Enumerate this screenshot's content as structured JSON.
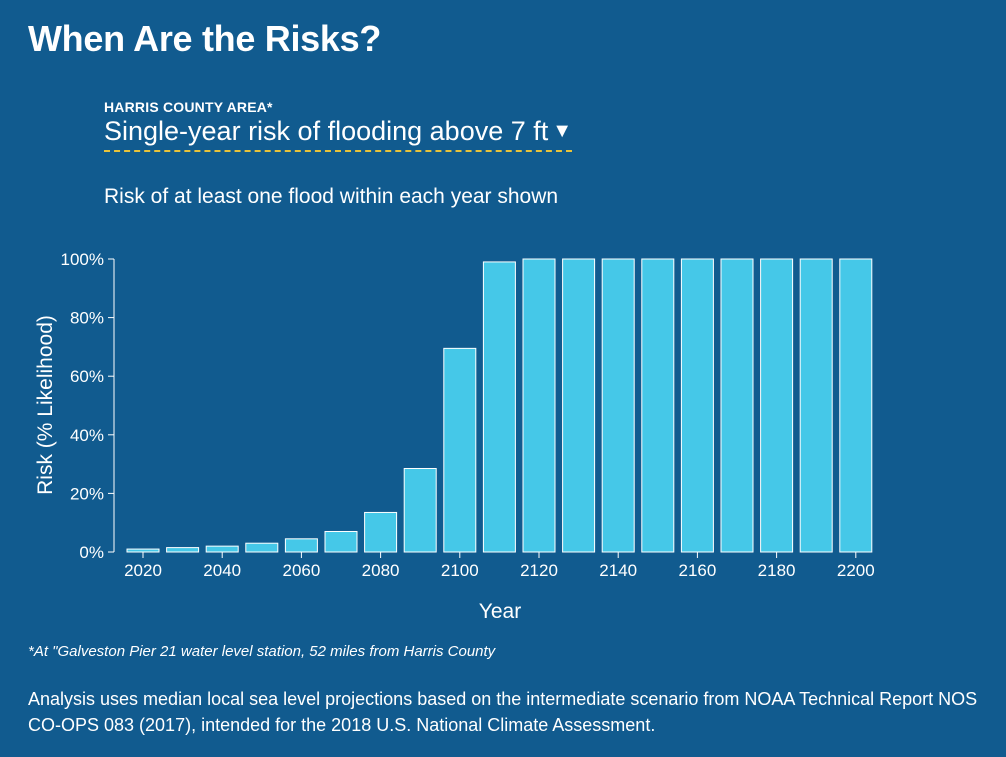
{
  "header": {
    "title": "When Are the Risks?",
    "area_label": "HARRIS COUNTY AREA*",
    "selector_label": "Single-year risk of flooding above 7 ft",
    "selector_caret": "▼",
    "subtitle": "Risk of at least one flood within each year shown"
  },
  "chart_data": {
    "type": "bar",
    "title": "",
    "xlabel": "Year",
    "ylabel": "Risk (% Likelihood)",
    "x": [
      2020,
      2030,
      2040,
      2050,
      2060,
      2070,
      2080,
      2090,
      2100,
      2110,
      2120,
      2130,
      2140,
      2150,
      2160,
      2170,
      2180,
      2190,
      2200
    ],
    "values": [
      1,
      1.5,
      2,
      3,
      4.5,
      7,
      13.5,
      28.5,
      69.5,
      99,
      100,
      100,
      100,
      100,
      100,
      100,
      100,
      100,
      100
    ],
    "ylim": [
      0,
      100
    ],
    "yticks": [
      0,
      20,
      40,
      60,
      80,
      100
    ],
    "ytick_labels": [
      "0%",
      "20%",
      "40%",
      "60%",
      "80%",
      "100%"
    ],
    "xticks": [
      2020,
      2040,
      2060,
      2080,
      2100,
      2120,
      2140,
      2160,
      2180,
      2200
    ],
    "grid": false,
    "bar_color": "#45c8e8",
    "bar_edge_color": "#ffffff"
  },
  "footer": {
    "footnote": "*At \"Galveston Pier 21 water level station, 52 miles from Harris County",
    "analysis": "Analysis uses median local sea level projections based on the intermediate scenario from NOAA Technical Report NOS CO-OPS 083 (2017), intended for the 2018 U.S. National Climate Assessment."
  }
}
